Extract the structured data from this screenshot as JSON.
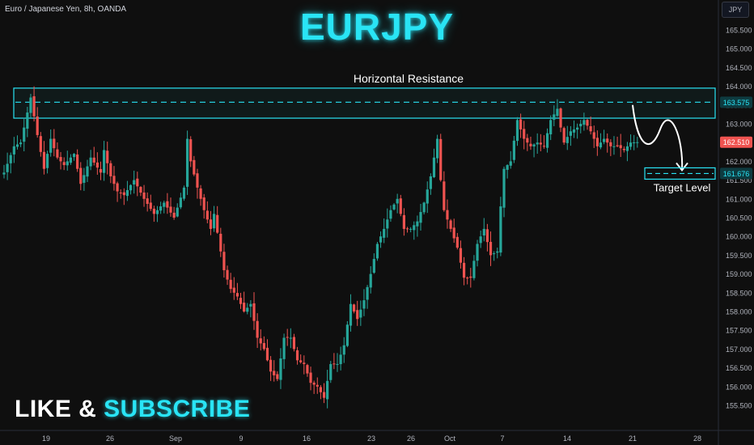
{
  "header": {
    "symbol_info": "Euro / Japanese Yen, 8h, OANDA",
    "title": "EURJPY",
    "currency_button": "JPY"
  },
  "cta": {
    "like": "LIKE & ",
    "subscribe": "SUBSCRIBE"
  },
  "colors": {
    "up": "#26a69a",
    "down": "#ef5350",
    "accent": "#29e4f5",
    "background": "#0f0f0f"
  },
  "chart_data": {
    "type": "candlestick",
    "title": "EURJPY",
    "y_ticks": [
      155.5,
      156.0,
      156.5,
      157.0,
      157.5,
      158.0,
      158.5,
      159.0,
      159.5,
      160.0,
      160.5,
      161.0,
      161.5,
      162.0,
      162.5,
      163.0,
      163.5,
      164.0,
      164.5,
      165.0,
      165.5
    ],
    "x_ticks": [
      "19",
      "26",
      "Sep",
      "9",
      "16",
      "23",
      "26",
      "Oct",
      "7",
      "14",
      "21",
      "28"
    ],
    "ylim": [
      155.3,
      165.9
    ],
    "annotations": {
      "resistance_label": "Horizontal Resistance",
      "resistance_price": "163.575",
      "resistance_zone": [
        163.15,
        163.95
      ],
      "target_label": "Target Level",
      "target_price": "161.676",
      "last_price": "162.510"
    },
    "anchors": [
      [
        0,
        161.7
      ],
      [
        3,
        162.4
      ],
      [
        5,
        162.5
      ],
      [
        8,
        163.7
      ],
      [
        10,
        162.7
      ],
      [
        12,
        161.8
      ],
      [
        14,
        162.6
      ],
      [
        16,
        162.1
      ],
      [
        18,
        161.9
      ],
      [
        21,
        162.2
      ],
      [
        23,
        161.4
      ],
      [
        26,
        162.1
      ],
      [
        29,
        161.7
      ],
      [
        30,
        162.3
      ],
      [
        32,
        161.6
      ],
      [
        34,
        161.2
      ],
      [
        36,
        161.1
      ],
      [
        39,
        161.5
      ],
      [
        42,
        161.0
      ],
      [
        45,
        160.6
      ],
      [
        48,
        160.9
      ],
      [
        51,
        160.5
      ],
      [
        54,
        161.3
      ],
      [
        55,
        162.6
      ],
      [
        56,
        162.0
      ],
      [
        58,
        161.3
      ],
      [
        60,
        160.7
      ],
      [
        62,
        160.2
      ],
      [
        63,
        160.6
      ],
      [
        66,
        159.1
      ],
      [
        68,
        158.6
      ],
      [
        70,
        158.4
      ],
      [
        72,
        158.0
      ],
      [
        74,
        158.2
      ],
      [
        76,
        157.3
      ],
      [
        78,
        157.0
      ],
      [
        80,
        156.4
      ],
      [
        82,
        156.2
      ],
      [
        84,
        157.3
      ],
      [
        86,
        157.3
      ],
      [
        88,
        156.7
      ],
      [
        90,
        156.6
      ],
      [
        92,
        156.1
      ],
      [
        94,
        156.0
      ],
      [
        96,
        155.7
      ],
      [
        98,
        156.6
      ],
      [
        100,
        156.6
      ],
      [
        102,
        157.1
      ],
      [
        104,
        158.2
      ],
      [
        106,
        157.8
      ],
      [
        108,
        158.3
      ],
      [
        110,
        159.0
      ],
      [
        112,
        159.8
      ],
      [
        114,
        160.2
      ],
      [
        116,
        160.7
      ],
      [
        118,
        161.0
      ],
      [
        120,
        160.2
      ],
      [
        122,
        160.2
      ],
      [
        124,
        160.4
      ],
      [
        126,
        160.9
      ],
      [
        128,
        161.6
      ],
      [
        130,
        162.6
      ],
      [
        131,
        161.5
      ],
      [
        132,
        160.7
      ],
      [
        134,
        160.2
      ],
      [
        136,
        159.7
      ],
      [
        138,
        158.9
      ],
      [
        140,
        158.9
      ],
      [
        142,
        159.8
      ],
      [
        144,
        160.2
      ],
      [
        146,
        159.5
      ],
      [
        148,
        159.6
      ],
      [
        149,
        160.8
      ],
      [
        150,
        161.8
      ],
      [
        152,
        162.0
      ],
      [
        154,
        163.1
      ],
      [
        156,
        162.6
      ],
      [
        158,
        162.4
      ],
      [
        160,
        162.5
      ],
      [
        162,
        162.4
      ],
      [
        164,
        163.1
      ],
      [
        166,
        163.4
      ],
      [
        167,
        162.9
      ],
      [
        168,
        162.5
      ],
      [
        170,
        162.8
      ],
      [
        172,
        162.9
      ],
      [
        174,
        163.1
      ],
      [
        176,
        162.8
      ],
      [
        178,
        162.4
      ],
      [
        180,
        162.6
      ],
      [
        182,
        162.4
      ],
      [
        184,
        162.4
      ],
      [
        186,
        162.3
      ],
      [
        188,
        162.5
      ],
      [
        190,
        162.51
      ]
    ]
  }
}
